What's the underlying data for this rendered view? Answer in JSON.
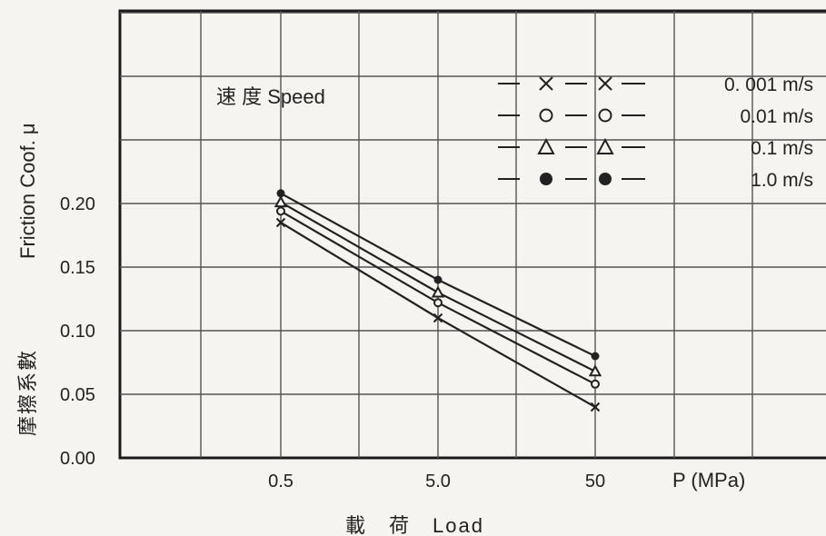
{
  "chart_data": {
    "type": "line",
    "title": "",
    "ylabel_en": "Friction Coof.  μ",
    "ylabel_zh": "摩擦系數",
    "xlabel": "載　荷　Load",
    "x_unit_label": "P  (MPa)",
    "x_scale": "log",
    "x_ticks": [
      0.5,
      5.0,
      50
    ],
    "x_tick_labels": [
      "0.5",
      "5.0",
      "50"
    ],
    "y_ticks": [
      0.0,
      0.05,
      0.1,
      0.15,
      0.2
    ],
    "y_tick_labels": [
      "0.00",
      "0.05",
      "0.10",
      "0.15",
      "0.20"
    ],
    "ylim": [
      0,
      0.35
    ],
    "grid": true,
    "legend_title": "速 度 Speed",
    "legend_position": "top-right",
    "x": [
      0.5,
      5.0,
      50
    ],
    "series": [
      {
        "name": "0. 001  m/s",
        "marker": "x",
        "values": [
          0.185,
          0.11,
          0.04
        ]
      },
      {
        "name": "0.01  m/s",
        "marker": "o",
        "values": [
          0.194,
          0.122,
          0.058
        ]
      },
      {
        "name": "0.1  m/s",
        "marker": "triangle",
        "values": [
          0.201,
          0.13,
          0.068
        ]
      },
      {
        "name": "1.0  m/s",
        "marker": "dot",
        "values": [
          0.208,
          0.14,
          0.08
        ]
      }
    ]
  }
}
